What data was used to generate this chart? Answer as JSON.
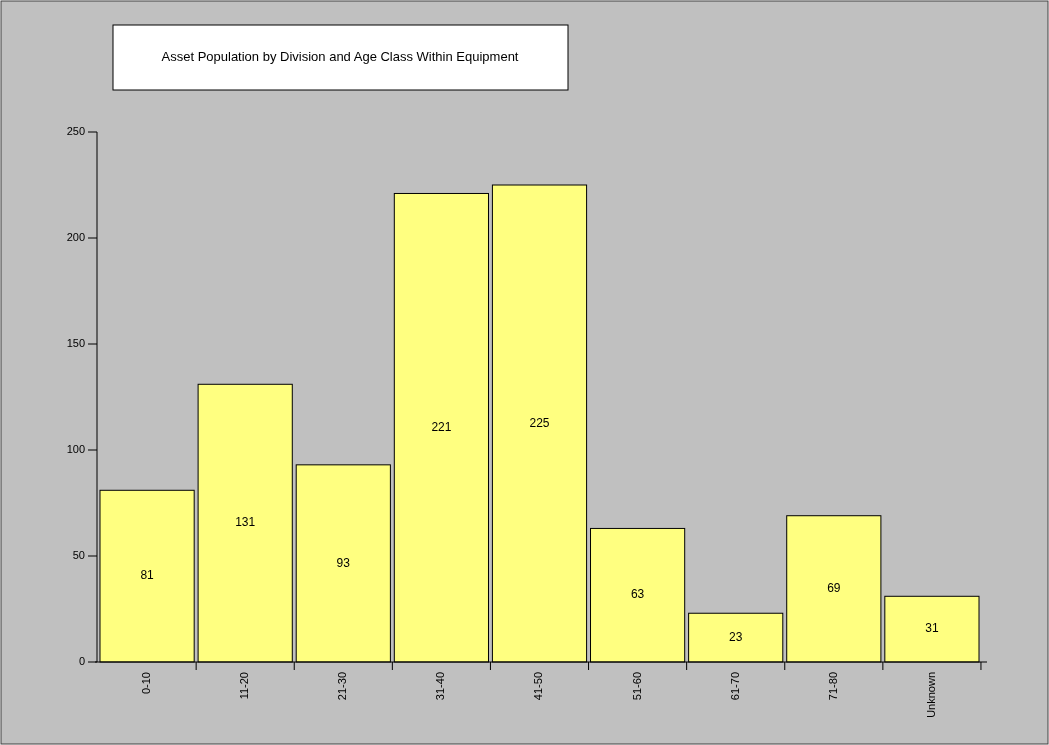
{
  "chart_data": {
    "type": "bar",
    "title": "Asset Population by Division and Age Class Within Equipment",
    "categories": [
      "0-10",
      "11-20",
      "21-30",
      "31-40",
      "41-50",
      "51-60",
      "61-70",
      "71-80",
      "Unknown"
    ],
    "values": [
      81,
      131,
      93,
      221,
      225,
      63,
      23,
      69,
      31
    ],
    "color": "#ffff80",
    "ylim": [
      0,
      250
    ],
    "yticks": [
      0,
      50,
      100,
      150,
      200,
      250
    ],
    "grid": false,
    "data_labels": true
  }
}
